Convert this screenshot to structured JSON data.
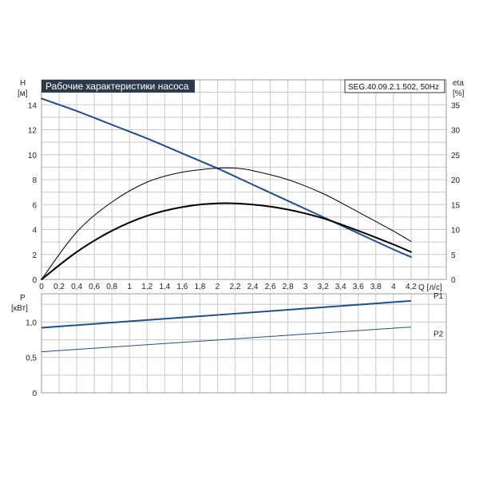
{
  "chart_data": [
    {
      "type": "line",
      "title": "Рабочие характеристики насоса",
      "model": "SEG.40.09.2.1.502, 50Hz",
      "xlabel": "Q [л/с]",
      "ylabel_left": "H",
      "ylabel_left_unit": "[м]",
      "ylabel_right": "eta",
      "ylabel_right_unit": "[%]",
      "xlim": [
        0,
        4.6
      ],
      "ylim_left": [
        0,
        16
      ],
      "ylim_right": [
        0,
        40
      ],
      "x_ticks": [
        "0",
        "0,2",
        "0,4",
        "0,6",
        "0,8",
        "1",
        "1,2",
        "1,4",
        "1,6",
        "1,8",
        "2",
        "2,2",
        "2,4",
        "2,6",
        "2,8",
        "3",
        "3,2",
        "3,4",
        "3,6",
        "3,8",
        "4",
        "4,2"
      ],
      "y_ticks_left": [
        "0",
        "2",
        "4",
        "6",
        "8",
        "10",
        "12",
        "14"
      ],
      "y_ticks_right": [
        "0",
        "5",
        "10",
        "15",
        "20",
        "25",
        "30",
        "35"
      ],
      "series": [
        {
          "axis": "left",
          "color": "#1f4e8c",
          "width": 2,
          "x": [
            0,
            0.4,
            0.8,
            1.2,
            1.6,
            2.0,
            2.4,
            2.8,
            3.2,
            3.6,
            4.0,
            4.2
          ],
          "y": [
            14.5,
            13.5,
            12.4,
            11.3,
            10.1,
            8.9,
            7.6,
            6.3,
            5.0,
            3.7,
            2.4,
            1.8
          ]
        },
        {
          "axis": "left",
          "color": "#000000",
          "width": 2,
          "x": [
            0,
            0.4,
            0.8,
            1.2,
            1.6,
            2.0,
            2.4,
            2.8,
            3.2,
            3.6,
            4.0,
            4.2
          ],
          "y": [
            0,
            2.2,
            3.9,
            5.1,
            5.8,
            6.1,
            6.0,
            5.6,
            4.9,
            3.9,
            2.8,
            2.2
          ]
        },
        {
          "axis": "right",
          "color": "#000000",
          "width": 1,
          "x": [
            0,
            0.4,
            0.8,
            1.2,
            1.6,
            2.0,
            2.2,
            2.4,
            2.8,
            3.2,
            3.6,
            4.0,
            4.2
          ],
          "y": [
            0,
            9.5,
            15.5,
            19.5,
            21.5,
            22.3,
            22.3,
            21.8,
            20.0,
            17.2,
            13.5,
            9.7,
            7.6
          ]
        }
      ]
    },
    {
      "type": "line",
      "ylabel": "P",
      "ylabel_unit": "[кВт]",
      "xlim": [
        0,
        4.6
      ],
      "ylim": [
        0,
        1.4
      ],
      "y_ticks": [
        "0",
        "0,5",
        "1,0"
      ],
      "series": [
        {
          "name": "P1",
          "color": "#1f4e8c",
          "width": 2,
          "x": [
            0,
            4.2
          ],
          "y": [
            0.92,
            1.3
          ]
        },
        {
          "name": "P2",
          "color": "#1f4e8c",
          "width": 1,
          "x": [
            0,
            4.2
          ],
          "y": [
            0.58,
            0.93
          ]
        }
      ]
    }
  ]
}
